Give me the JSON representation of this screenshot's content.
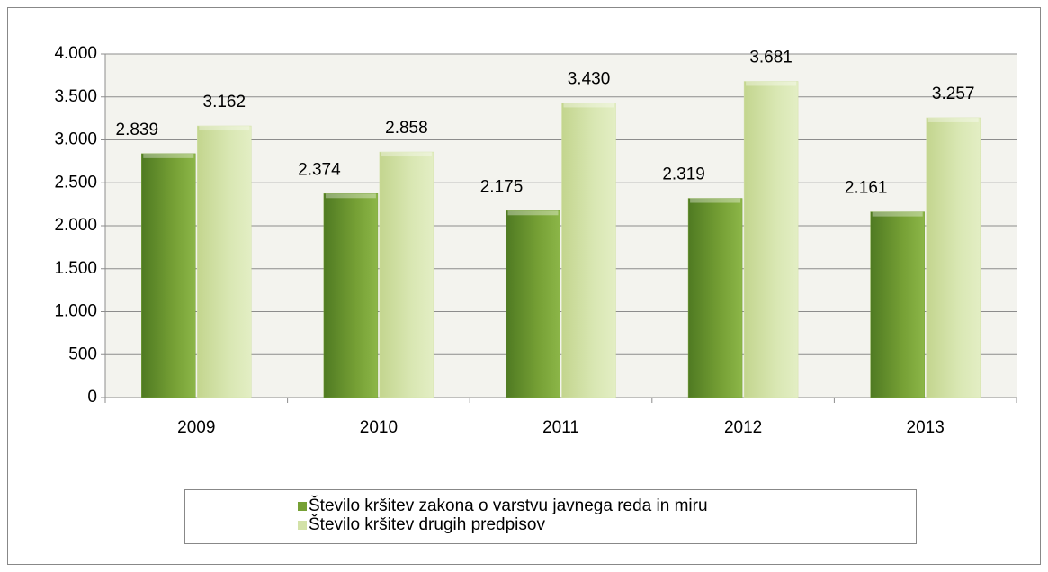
{
  "chart_data": {
    "type": "bar",
    "categories": [
      "2009",
      "2010",
      "2011",
      "2012",
      "2013"
    ],
    "series": [
      {
        "name": "Število kršitev zakona o varstvu javnega reda in miru",
        "color": "#76a035",
        "values": [
          2839,
          2374,
          2175,
          2319,
          2161
        ],
        "value_labels": [
          "2.839",
          "2.374",
          "2.175",
          "2.319",
          "2.161"
        ]
      },
      {
        "name": "Število kršitev drugih predpisov",
        "color": "#d3e2a8",
        "values": [
          3162,
          2858,
          3430,
          3681,
          3257
        ],
        "value_labels": [
          "3.162",
          "2.858",
          "3.430",
          "3.681",
          "3.257"
        ]
      }
    ],
    "ylim": [
      0,
      4000
    ],
    "yticks": [
      0,
      500,
      {
        "value": 1000,
        "label": "1.000"
      },
      {
        "value": 1500,
        "label": "1.500"
      },
      {
        "value": 2000,
        "label": "2.000"
      },
      {
        "value": 2500,
        "label": "2.500"
      },
      {
        "value": 3000,
        "label": "3.000"
      },
      {
        "value": 3500,
        "label": "3.500"
      },
      {
        "value": 4000,
        "label": "4.000"
      }
    ],
    "grid": true,
    "legend": "bottom"
  }
}
